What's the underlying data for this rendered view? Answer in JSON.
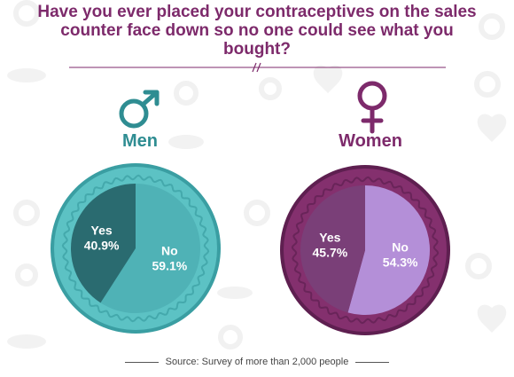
{
  "title": "Have you ever placed your contraceptives on the sales counter face down so no one could see what you bought?",
  "source": "Source: Survey of more than 2,000 people",
  "icons": {
    "men": "male-symbol-icon",
    "women": "female-symbol-icon"
  },
  "colors": {
    "title": "#7d2a6b",
    "men_accent": "#2f8d92",
    "men_yes": "#2a6b70",
    "men_no": "#4fb2b6",
    "men_rim": "#5cc2c4",
    "women_accent": "#7d2a6b",
    "women_yes": "#7a3f78",
    "women_no": "#b48fd8",
    "women_rim": "#84306e"
  },
  "chart_data": [
    {
      "type": "pie",
      "title": "Men",
      "categories": [
        "Yes",
        "No"
      ],
      "values": [
        40.9,
        59.1
      ],
      "labels": [
        "40.9%",
        "59.1%"
      ]
    },
    {
      "type": "pie",
      "title": "Women",
      "categories": [
        "Yes",
        "No"
      ],
      "values": [
        45.7,
        54.3
      ],
      "labels": [
        "45.7%",
        "54.3%"
      ]
    }
  ]
}
